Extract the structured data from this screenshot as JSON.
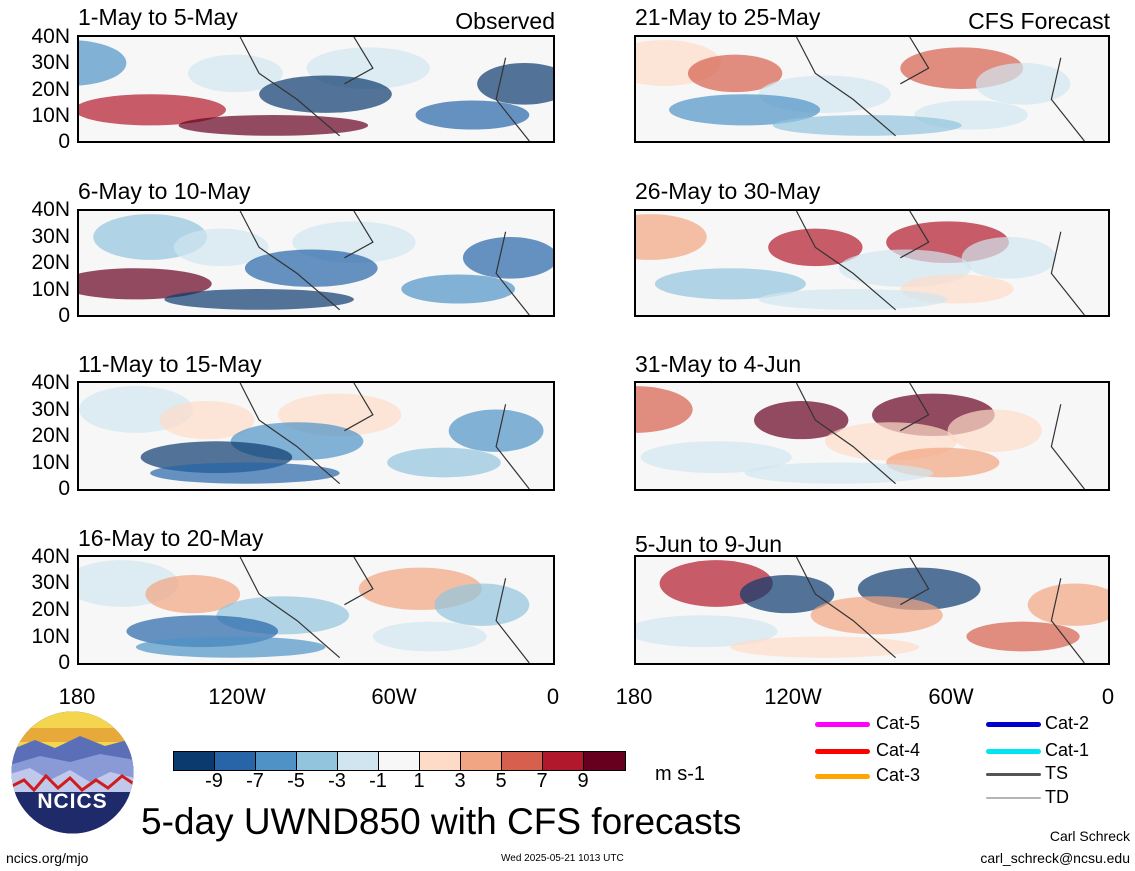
{
  "header": {
    "observed_label": "Observed",
    "forecast_label": "CFS Forecast"
  },
  "panels_left": [
    {
      "title": "1-May to 5-May"
    },
    {
      "title": "6-May to 10-May"
    },
    {
      "title": "11-May to 15-May"
    },
    {
      "title": "16-May to 20-May"
    }
  ],
  "panels_right": [
    {
      "title": "21-May to 25-May"
    },
    {
      "title": "26-May to 30-May"
    },
    {
      "title": "31-May to 4-Jun"
    },
    {
      "title": "5-Jun to 9-Jun"
    }
  ],
  "axes": {
    "y_ticks": [
      "40N",
      "30N",
      "20N",
      "10N",
      "0"
    ],
    "x_ticks": [
      "180",
      "120W",
      "60W",
      "0"
    ]
  },
  "colorbar": {
    "colors": [
      "#0b3b6e",
      "#2765a8",
      "#4f93c6",
      "#92c4de",
      "#d1e5f0",
      "#f7f7f7",
      "#fddbc7",
      "#f2a582",
      "#d6604d",
      "#b2182b",
      "#67001f"
    ],
    "labels": [
      "-9",
      "-7",
      "-5",
      "-3",
      "-1",
      "1",
      "3",
      "5",
      "7",
      "9"
    ],
    "units": "m s-1"
  },
  "legend": {
    "items": [
      {
        "label": "Cat-5",
        "color": "#ff00ff",
        "icon": "magenta-line"
      },
      {
        "label": "Cat-4",
        "color": "#ff0000",
        "icon": "red-line"
      },
      {
        "label": "Cat-3",
        "color": "#ffa500",
        "icon": "orange-line"
      },
      {
        "label": "Cat-2",
        "color": "#0000cc",
        "icon": "blue-line"
      },
      {
        "label": "Cat-1",
        "color": "#00e5ee",
        "icon": "cyan-line"
      },
      {
        "label": "TS",
        "color": "#555555",
        "icon": "gray-line"
      },
      {
        "label": "TD",
        "color": "#b5b5b5",
        "icon": "light-gray-line"
      }
    ]
  },
  "footer": {
    "logo_text": "NCICS",
    "main_title": "5-day UWND850 with CFS forecasts",
    "url": "ncics.org/mjo",
    "timestamp": "Wed 2025-05-21 1013 UTC",
    "author": "Carl Schreck",
    "email": "carl_schreck@ncsu.edu"
  }
}
